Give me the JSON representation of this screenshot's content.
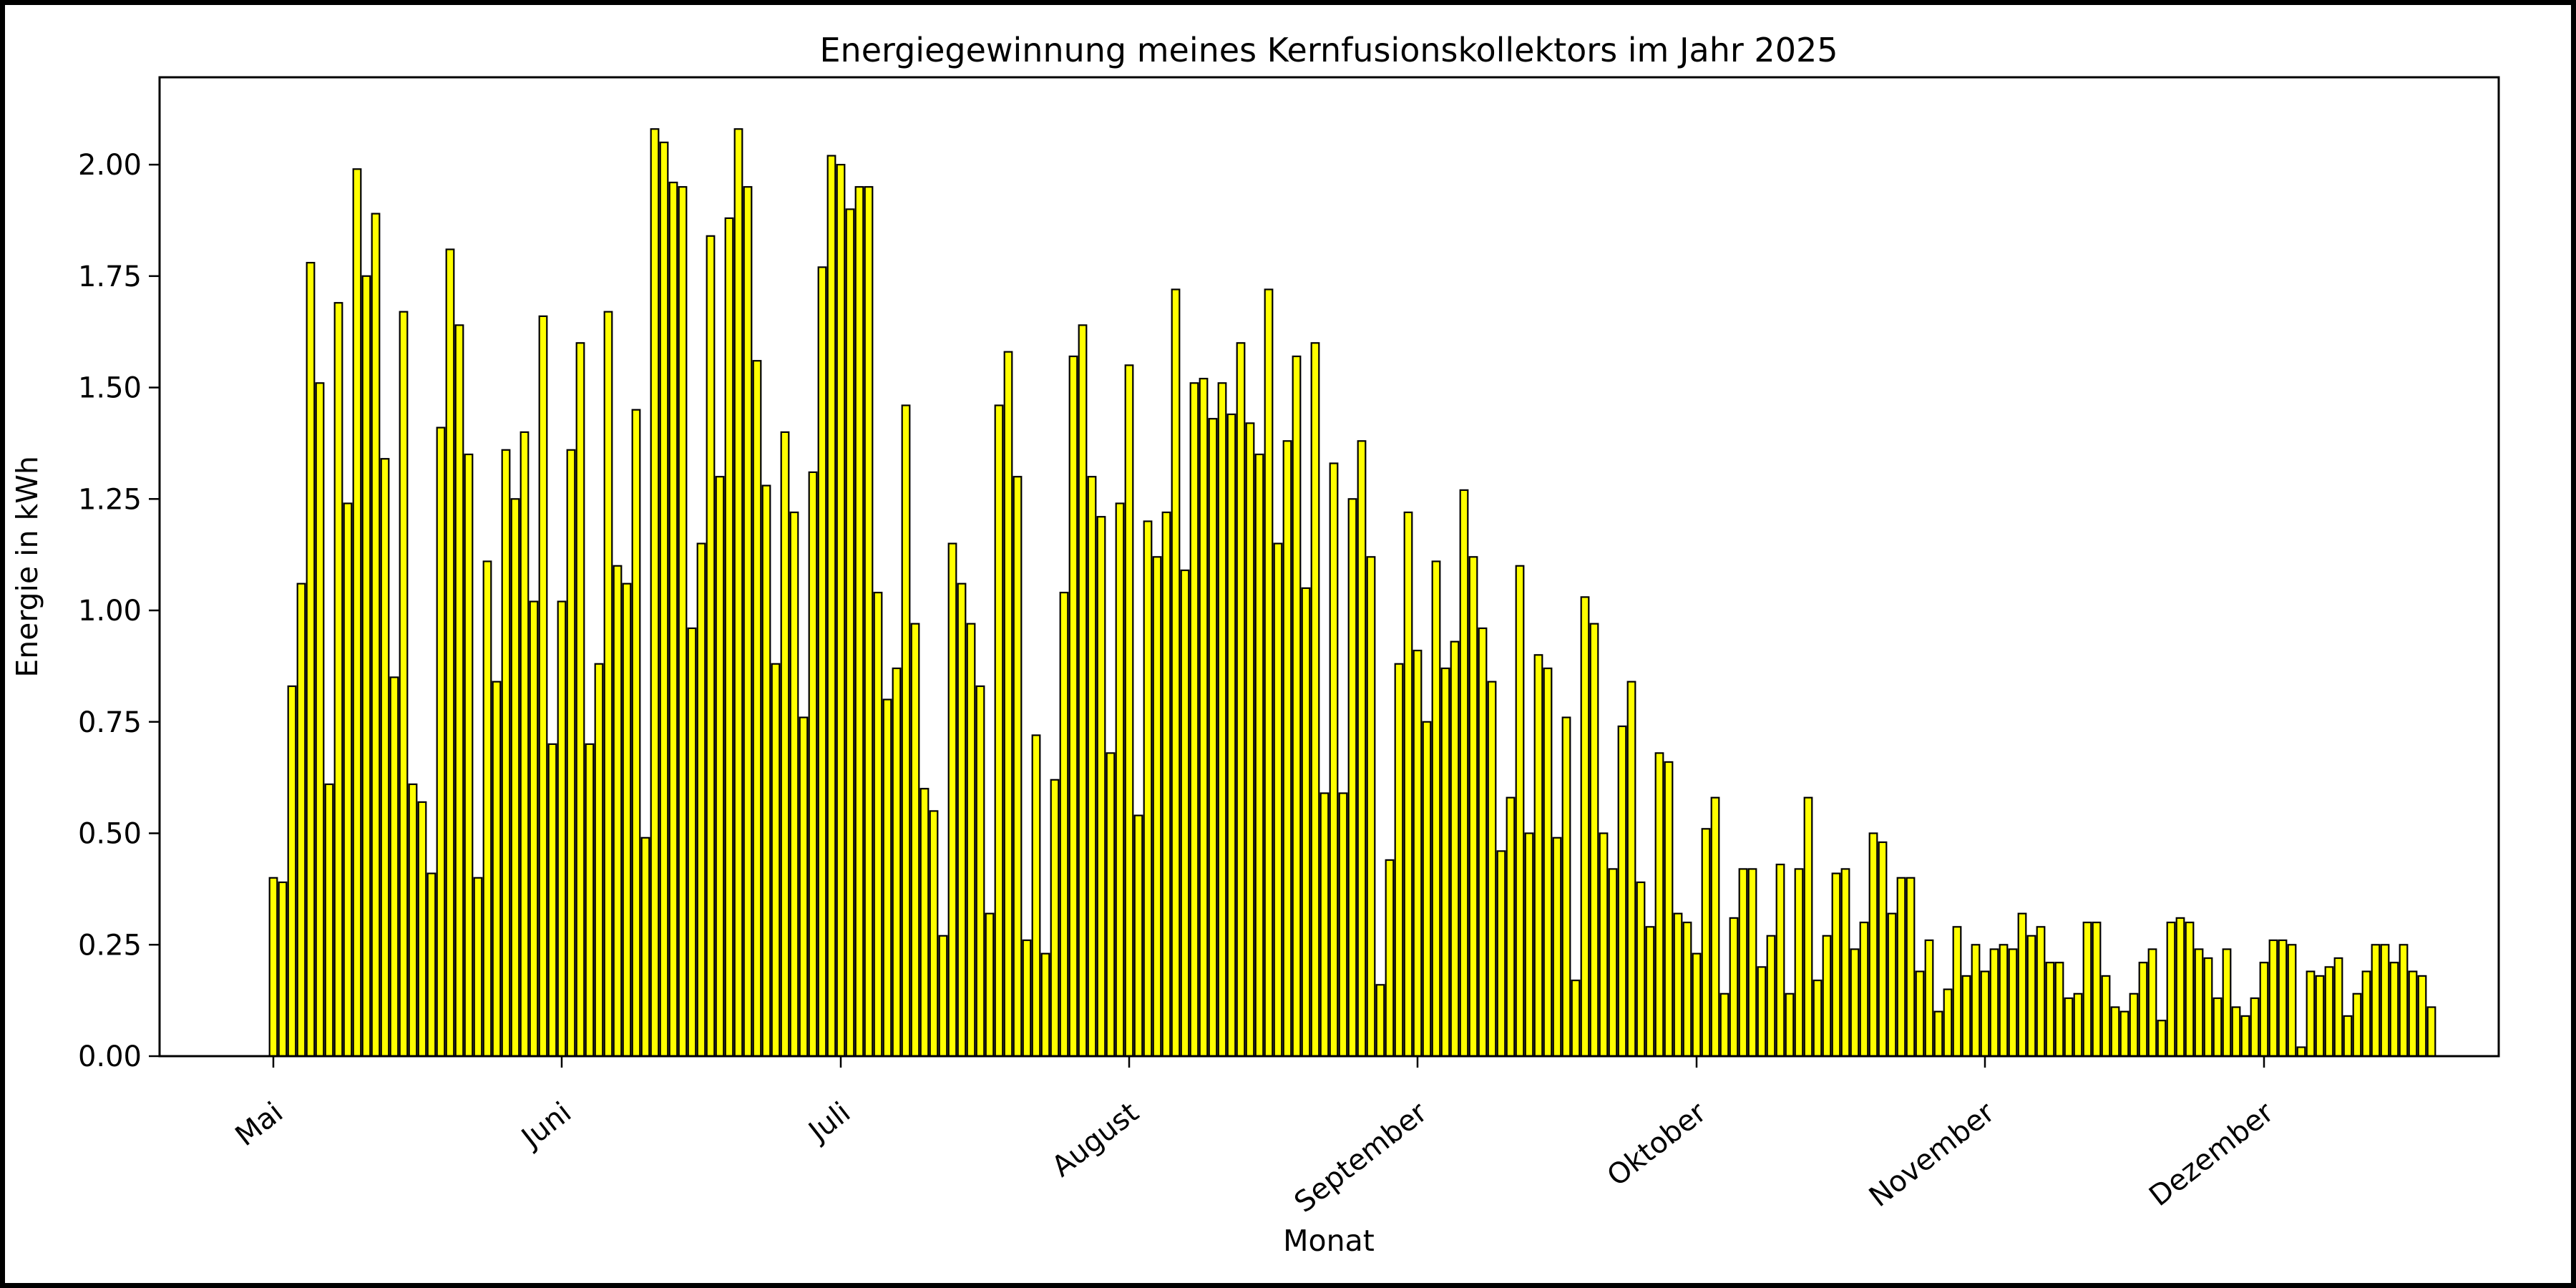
{
  "figure": {
    "background": "#ffffff",
    "frame_color": "#000000"
  },
  "chart_data": {
    "type": "bar",
    "title": "Energiegewinnung meines Kernfusionskollektors im Jahr 2025",
    "xlabel": "Monat",
    "ylabel": "Energie in kWh",
    "bar_color": "#ffff00",
    "bar_edge_color": "#000000",
    "axis_color": "#000000",
    "grid": false,
    "legend": false,
    "ylim": [
      0,
      2.196
    ],
    "ytick_labels": [
      "0.00",
      "0.25",
      "0.50",
      "0.75",
      "1.00",
      "1.25",
      "1.50",
      "1.75",
      "2.00"
    ],
    "ytick_values": [
      0.0,
      0.25,
      0.5,
      0.75,
      1.0,
      1.25,
      1.5,
      1.75,
      2.0
    ],
    "x_unit": "daily bars, first bar at Mai tick, last bar 19 days after Dezember tick",
    "months": [
      {
        "label": "Mai",
        "values": [
          0.4,
          0.39,
          0.83,
          1.06,
          1.78,
          1.51,
          0.61,
          1.69,
          1.24,
          1.99,
          1.75,
          1.89,
          1.34,
          0.85,
          1.67,
          0.61,
          0.57,
          0.41,
          1.41,
          1.81,
          1.64,
          1.35,
          0.4,
          1.11,
          0.84,
          1.36,
          1.25,
          1.4,
          1.02,
          1.66,
          0.7
        ]
      },
      {
        "label": "Juni",
        "values": [
          1.02,
          1.36,
          1.6,
          0.7,
          0.88,
          1.67,
          1.1,
          1.06,
          1.45,
          0.49,
          2.08,
          2.05,
          1.96,
          1.95,
          0.96,
          1.15,
          1.84,
          1.3,
          1.88,
          2.08,
          1.95,
          1.56,
          1.28,
          0.88,
          1.4,
          1.22,
          0.76,
          1.31,
          1.77,
          2.02
        ]
      },
      {
        "label": "Juli",
        "values": [
          2.0,
          1.9,
          1.95,
          1.95,
          1.04,
          0.8,
          0.87,
          1.46,
          0.97,
          0.6,
          0.55,
          0.27,
          1.15,
          1.06,
          0.97,
          0.83,
          0.32,
          1.46,
          1.58,
          1.3,
          0.26,
          0.72,
          0.23,
          0.62,
          1.04,
          1.57,
          1.64,
          1.3,
          1.21,
          0.68,
          1.24
        ]
      },
      {
        "label": "August",
        "values": [
          1.55,
          0.54,
          1.2,
          1.12,
          1.22,
          1.72,
          1.09,
          1.51,
          1.52,
          1.43,
          1.51,
          1.44,
          1.6,
          1.42,
          1.35,
          1.72,
          1.15,
          1.38,
          1.57,
          1.05,
          1.6,
          0.59,
          1.33,
          0.59,
          1.25,
          1.38,
          1.12,
          0.16,
          0.44,
          0.88,
          1.22
        ]
      },
      {
        "label": "September",
        "values": [
          0.91,
          0.75,
          1.11,
          0.87,
          0.93,
          1.27,
          1.12,
          0.96,
          0.84,
          0.46,
          0.58,
          1.1,
          0.5,
          0.9,
          0.87,
          0.49,
          0.76,
          0.17,
          1.03,
          0.97,
          0.5,
          0.42,
          0.74,
          0.84,
          0.39,
          0.29,
          0.68,
          0.66,
          0.32,
          0.3
        ]
      },
      {
        "label": "Oktober",
        "values": [
          0.23,
          0.51,
          0.58,
          0.14,
          0.31,
          0.42,
          0.42,
          0.2,
          0.27,
          0.43,
          0.14,
          0.42,
          0.58,
          0.17,
          0.27,
          0.41,
          0.42,
          0.24,
          0.3,
          0.5,
          0.48,
          0.32,
          0.4,
          0.4,
          0.19,
          0.26,
          0.1,
          0.15,
          0.29,
          0.18,
          0.25
        ]
      },
      {
        "label": "November",
        "values": [
          0.19,
          0.24,
          0.25,
          0.24,
          0.32,
          0.27,
          0.29,
          0.21,
          0.21,
          0.13,
          0.14,
          0.3,
          0.3,
          0.18,
          0.11,
          0.1,
          0.14,
          0.21,
          0.24,
          0.08,
          0.3,
          0.31,
          0.3,
          0.24,
          0.22,
          0.13,
          0.24,
          0.11,
          0.09,
          0.13
        ]
      },
      {
        "label": "Dezember",
        "values": [
          0.21,
          0.26,
          0.26,
          0.25,
          0.02,
          0.19,
          0.18,
          0.2,
          0.22,
          0.09,
          0.14,
          0.19,
          0.25,
          0.25,
          0.21,
          0.25,
          0.19,
          0.18,
          0.11
        ]
      }
    ]
  }
}
